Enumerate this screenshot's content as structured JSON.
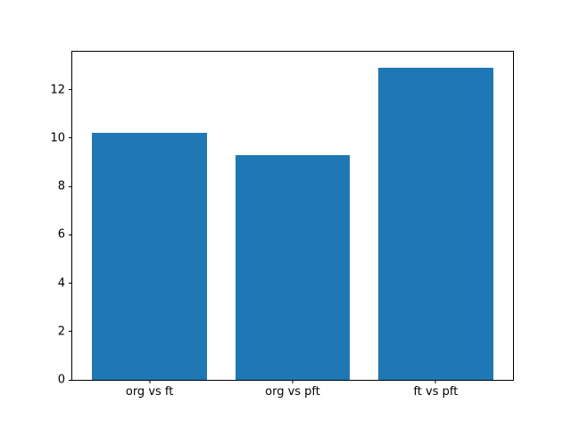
{
  "chart_data": {
    "type": "bar",
    "title": "",
    "xlabel": "",
    "ylabel": "",
    "categories": [
      "org vs ft",
      "org vs pft",
      "ft vs pft"
    ],
    "values": [
      10.2,
      9.3,
      12.9
    ],
    "x": [
      0,
      1,
      2
    ],
    "yticks": [
      0,
      2,
      4,
      6,
      8,
      10,
      12
    ],
    "ylim": [
      0,
      13.57
    ],
    "xlim": [
      -0.54,
      2.54
    ],
    "bar_width": 0.8,
    "bar_color": "#1f77b4",
    "spine_color": "#000000",
    "background_color": "#ffffff",
    "grid": false,
    "legend": "none"
  }
}
